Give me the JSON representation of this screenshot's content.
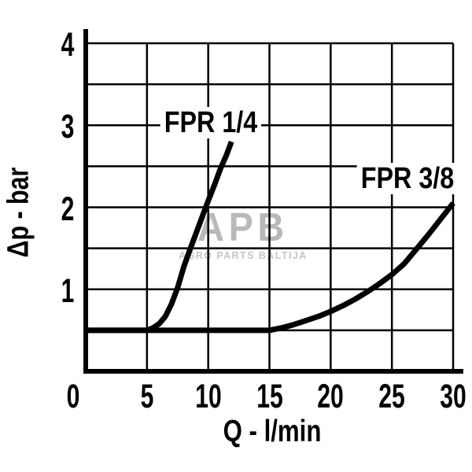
{
  "watermark": {
    "logo_text": "APB",
    "subtitle": "AGRO PARTS BALTIJA",
    "logo_color": "#b9b9b9",
    "subtitle_color": "#c5c5c5"
  },
  "chart_data": {
    "type": "line",
    "title": "",
    "xlabel": "Q - l/min",
    "ylabel": "Δp - bar",
    "xlim": [
      0,
      30
    ],
    "ylim": [
      0,
      4
    ],
    "x_ticks": [
      0,
      5,
      10,
      15,
      20,
      25,
      30
    ],
    "y_ticks": [
      4,
      3,
      2,
      1
    ],
    "x_grid_step": 5,
    "y_grid_step": 0.5,
    "grid": "on",
    "background_color": "#ffffff",
    "axis_color": "#000000",
    "curve_color": "#000000",
    "series": [
      {
        "name": "FPR 1/4",
        "points": [
          [
            0,
            0.5
          ],
          [
            5,
            0.5
          ],
          [
            5.5,
            0.53
          ],
          [
            6,
            0.58
          ],
          [
            6.5,
            0.67
          ],
          [
            7,
            0.82
          ],
          [
            7.5,
            1.02
          ],
          [
            8,
            1.27
          ],
          [
            8.5,
            1.48
          ],
          [
            9,
            1.68
          ],
          [
            9.5,
            1.88
          ],
          [
            10,
            2.08
          ],
          [
            10.5,
            2.27
          ],
          [
            11,
            2.47
          ],
          [
            11.5,
            2.64
          ],
          [
            11.9,
            2.8
          ]
        ]
      },
      {
        "name": "FPR 3/8",
        "points": [
          [
            0,
            0.5
          ],
          [
            15,
            0.5
          ],
          [
            16,
            0.53
          ],
          [
            17,
            0.57
          ],
          [
            18,
            0.62
          ],
          [
            19,
            0.67
          ],
          [
            20,
            0.73
          ],
          [
            21,
            0.8
          ],
          [
            22,
            0.88
          ],
          [
            23,
            0.97
          ],
          [
            24,
            1.07
          ],
          [
            25,
            1.18
          ],
          [
            26,
            1.31
          ],
          [
            27,
            1.49
          ],
          [
            28,
            1.67
          ],
          [
            29,
            1.86
          ],
          [
            30,
            2.05
          ]
        ]
      }
    ]
  }
}
